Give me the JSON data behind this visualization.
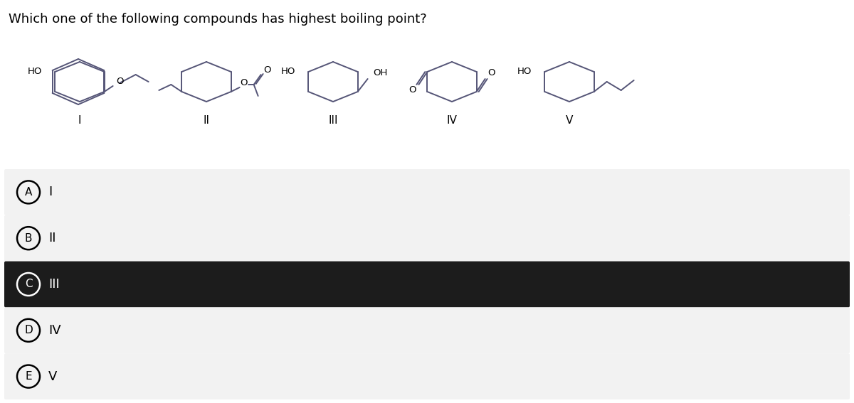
{
  "question": "Which one of the following compounds has highest boiling point?",
  "question_fontsize": 13,
  "options": [
    {
      "label": "A",
      "text": "I",
      "selected": false
    },
    {
      "label": "B",
      "text": "II",
      "selected": false
    },
    {
      "label": "C",
      "text": "III",
      "selected": true
    },
    {
      "label": "D",
      "text": "IV",
      "selected": false
    },
    {
      "label": "E",
      "text": "V",
      "selected": false
    }
  ],
  "bg_selected": "#1c1c1c",
  "bg_unselected": "#f2f2f2",
  "bg_white": "#ffffff",
  "text_selected": "#ffffff",
  "text_unselected": "#000000",
  "fig_bg": "#ffffff",
  "line_color": "#555577",
  "line_width": 1.4,
  "hex_color": "#555577"
}
